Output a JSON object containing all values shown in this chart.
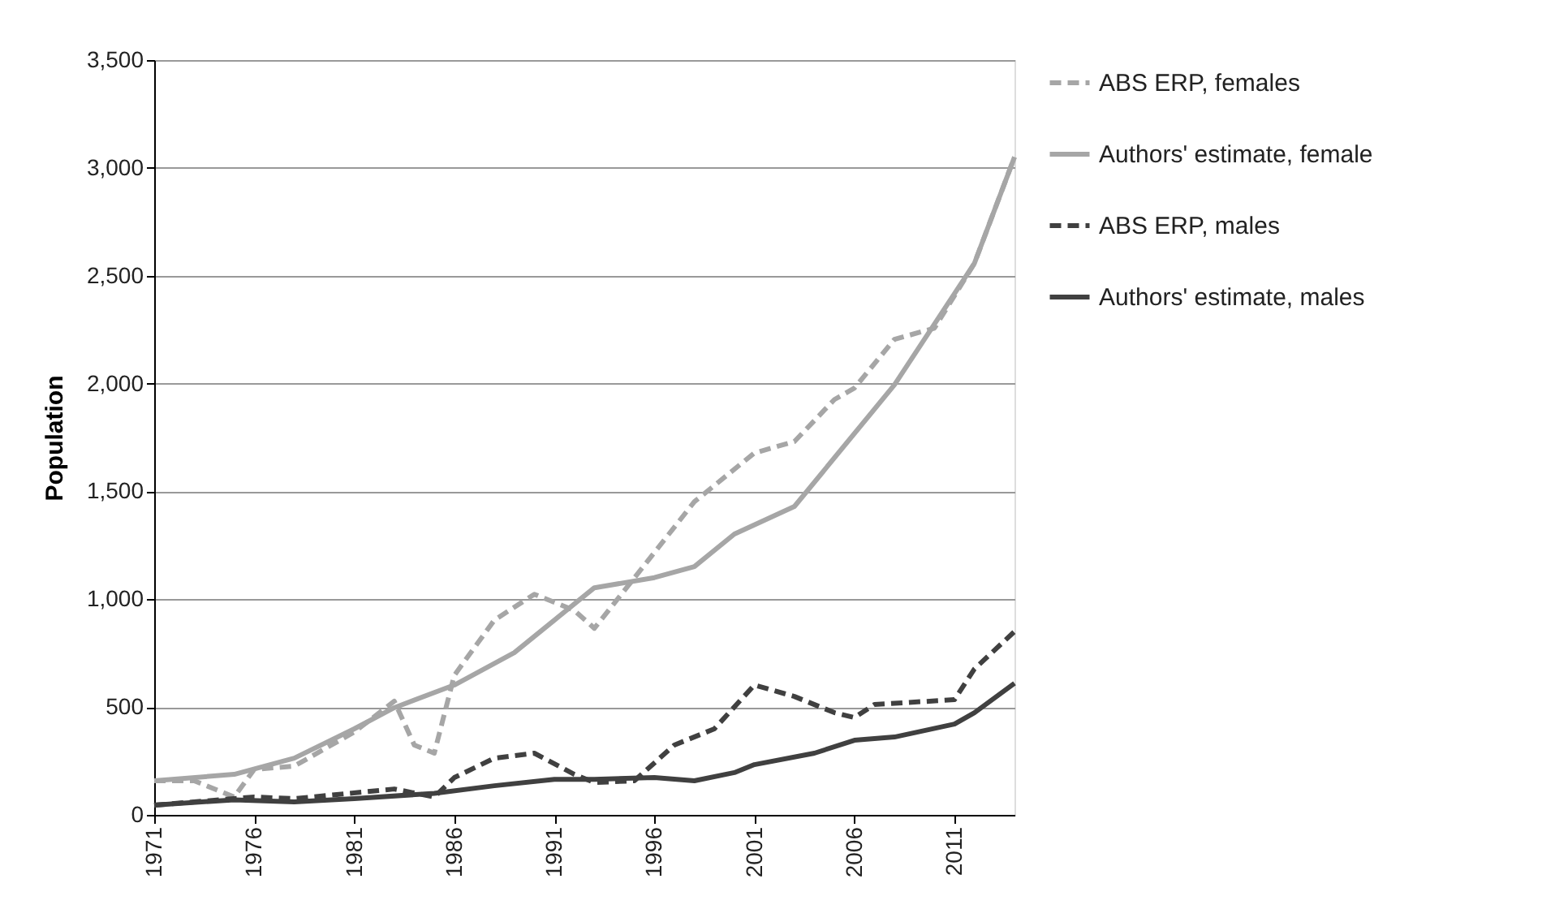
{
  "chart_data": {
    "type": "line",
    "ylabel": "Population",
    "xlim": [
      1971,
      2014
    ],
    "xticks": [
      1971,
      1976,
      1981,
      1986,
      1991,
      1996,
      2001,
      2006,
      2011
    ],
    "ylim": [
      0,
      3500
    ],
    "yticks": [
      {
        "value": 0,
        "label": "0"
      },
      {
        "value": 500,
        "label": "500"
      },
      {
        "value": 1000,
        "label": "1,000"
      },
      {
        "value": 1500,
        "label": "1,500"
      },
      {
        "value": 2000,
        "label": "2,000"
      },
      {
        "value": 2500,
        "label": "2,500"
      },
      {
        "value": 3000,
        "label": "3,000"
      },
      {
        "value": 3500,
        "label": "3,500"
      }
    ],
    "grid": "y",
    "legend": "right",
    "marker": "none",
    "series": [
      {
        "name": "ABS ERP, females",
        "color": "#a6a6a6",
        "line_style": "dashed",
        "x": [
          1971,
          1973,
          1975,
          1976,
          1978,
          1981,
          1983,
          1984,
          1985,
          1986,
          1988,
          1990,
          1992,
          1993,
          1995,
          1998,
          2001,
          2003,
          2005,
          2006,
          2008,
          2010,
          2012,
          2014
        ],
        "values": [
          158,
          158,
          83,
          211,
          226,
          384,
          527,
          324,
          286,
          647,
          903,
          1023,
          948,
          865,
          1099,
          1452,
          1678,
          1731,
          1926,
          1979,
          2205,
          2257,
          2558,
          3050
        ]
      },
      {
        "name": "Authors' estimate, female",
        "color": "#a6a6a6",
        "line_style": "solid",
        "x": [
          1971,
          1975,
          1978,
          1981,
          1983,
          1986,
          1989,
          1991,
          1993,
          1996,
          1998,
          2000,
          2003,
          2008,
          2012,
          2014
        ],
        "values": [
          158,
          188,
          263,
          399,
          497,
          602,
          752,
          903,
          1053,
          1100,
          1151,
          1302,
          1430,
          1994,
          2558,
          3050
        ]
      },
      {
        "name": "ABS ERP, males",
        "color": "#404040",
        "line_style": "dashed",
        "x": [
          1971,
          1976,
          1978,
          1983,
          1985,
          1986,
          1988,
          1990,
          1992,
          1993,
          1995,
          1997,
          1999,
          2001,
          2003,
          2005,
          2006,
          2007,
          2011,
          2012,
          2014
        ],
        "values": [
          45,
          83,
          75,
          120,
          83,
          173,
          263,
          286,
          188,
          150,
          158,
          324,
          399,
          602,
          549,
          474,
          451,
          512,
          534,
          677,
          850
        ]
      },
      {
        "name": "Authors' estimate, males",
        "color": "#404040",
        "line_style": "solid",
        "x": [
          1971,
          1975,
          1978,
          1981,
          1985,
          1988,
          1991,
          1993,
          1996,
          1998,
          2000,
          2001,
          2004,
          2006,
          2008,
          2011,
          2012,
          2014
        ],
        "values": [
          45,
          70,
          60,
          75,
          100,
          135,
          165,
          165,
          173,
          158,
          196,
          233,
          286,
          346,
          361,
          421,
          474,
          610
        ]
      }
    ]
  }
}
